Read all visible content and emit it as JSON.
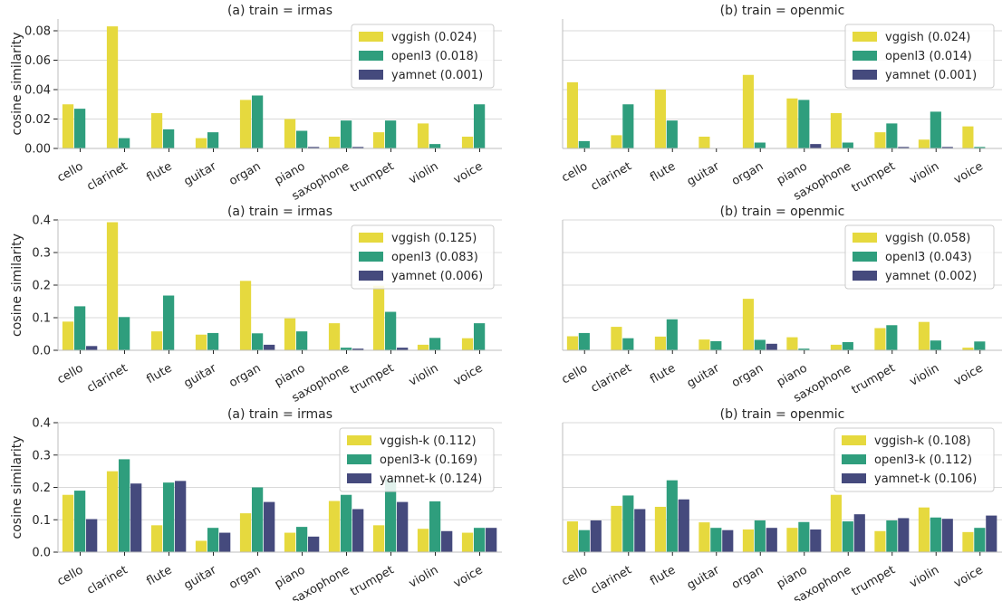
{
  "chart_data": [
    {
      "type": "bar",
      "title": "(a) train = irmas",
      "ylabel": "cosine similarity",
      "ylim": [
        0,
        0.088
      ],
      "yticks": [
        0.0,
        0.02,
        0.04,
        0.06,
        0.08
      ],
      "ytick_labels": [
        "0.00",
        "0.02",
        "0.04",
        "0.06",
        "0.08"
      ],
      "grid": "horizontal",
      "legend_position": "top-right",
      "categories": [
        "cello",
        "clarinet",
        "flute",
        "guitar",
        "organ",
        "piano",
        "saxophone",
        "trumpet",
        "violin",
        "voice"
      ],
      "series": [
        {
          "name": "vggish (0.024)",
          "color": "#e6d93e",
          "values": [
            0.03,
            0.083,
            0.024,
            0.007,
            0.033,
            0.02,
            0.008,
            0.011,
            0.017,
            0.008
          ]
        },
        {
          "name": "openl3 (0.018)",
          "color": "#2f9e7d",
          "values": [
            0.027,
            0.007,
            0.013,
            0.011,
            0.036,
            0.012,
            0.019,
            0.019,
            0.003,
            0.03
          ]
        },
        {
          "name": "yamnet (0.001)",
          "color": "#454a7d",
          "values": [
            0.0,
            0.0,
            0.0,
            0.0,
            0.0,
            0.001,
            0.001,
            0.0,
            0.0,
            0.0
          ]
        }
      ]
    },
    {
      "type": "bar",
      "title": "(b) train = openmic",
      "ylabel": "",
      "ylim": [
        0,
        0.088
      ],
      "yticks": [
        0.0,
        0.02,
        0.04,
        0.06,
        0.08
      ],
      "ytick_labels": [],
      "grid": "horizontal",
      "legend_position": "top-right",
      "categories": [
        "cello",
        "clarinet",
        "flute",
        "guitar",
        "organ",
        "piano",
        "saxophone",
        "trumpet",
        "violin",
        "voice"
      ],
      "series": [
        {
          "name": "vggish (0.024)",
          "color": "#e6d93e",
          "values": [
            0.045,
            0.009,
            0.04,
            0.008,
            0.05,
            0.034,
            0.024,
            0.011,
            0.006,
            0.015
          ]
        },
        {
          "name": "openl3 (0.014)",
          "color": "#2f9e7d",
          "values": [
            0.005,
            0.03,
            0.019,
            0.0,
            0.004,
            0.033,
            0.004,
            0.017,
            0.025,
            0.001
          ]
        },
        {
          "name": "yamnet (0.001)",
          "color": "#454a7d",
          "values": [
            0.0,
            0.0,
            0.0,
            0.0,
            0.0,
            0.003,
            0.0,
            0.001,
            0.001,
            0.0
          ]
        }
      ]
    },
    {
      "type": "bar",
      "title": "(a) train = irmas",
      "ylabel": "cosine similarity",
      "ylim": [
        0,
        0.4
      ],
      "yticks": [
        0.0,
        0.1,
        0.2,
        0.3,
        0.4
      ],
      "ytick_labels": [
        "0.0",
        "0.1",
        "0.2",
        "0.3",
        "0.4"
      ],
      "grid": "horizontal",
      "legend_position": "top-right",
      "categories": [
        "cello",
        "clarinet",
        "flute",
        "guitar",
        "organ",
        "piano",
        "saxophone",
        "trumpet",
        "violin",
        "voice"
      ],
      "series": [
        {
          "name": "vggish (0.125)",
          "color": "#e6d93e",
          "values": [
            0.088,
            0.393,
            0.058,
            0.048,
            0.213,
            0.098,
            0.083,
            0.198,
            0.017,
            0.037
          ]
        },
        {
          "name": "openl3 (0.083)",
          "color": "#2f9e7d",
          "values": [
            0.135,
            0.102,
            0.168,
            0.053,
            0.052,
            0.058,
            0.008,
            0.118,
            0.038,
            0.083
          ]
        },
        {
          "name": "yamnet (0.006)",
          "color": "#454a7d",
          "values": [
            0.013,
            0.0,
            0.0,
            0.0,
            0.017,
            0.0,
            0.005,
            0.008,
            0.0,
            0.0
          ]
        }
      ]
    },
    {
      "type": "bar",
      "title": "(b) train = openmic",
      "ylabel": "",
      "ylim": [
        0,
        0.4
      ],
      "yticks": [
        0.0,
        0.1,
        0.2,
        0.3,
        0.4
      ],
      "ytick_labels": [],
      "grid": "horizontal",
      "legend_position": "top-right",
      "categories": [
        "cello",
        "clarinet",
        "flute",
        "guitar",
        "organ",
        "piano",
        "saxophone",
        "trumpet",
        "violin",
        "voice"
      ],
      "series": [
        {
          "name": "vggish (0.058)",
          "color": "#e6d93e",
          "values": [
            0.043,
            0.072,
            0.042,
            0.033,
            0.158,
            0.04,
            0.017,
            0.068,
            0.087,
            0.008
          ]
        },
        {
          "name": "openl3 (0.043)",
          "color": "#2f9e7d",
          "values": [
            0.053,
            0.037,
            0.095,
            0.028,
            0.032,
            0.005,
            0.025,
            0.077,
            0.03,
            0.027
          ]
        },
        {
          "name": "yamnet (0.002)",
          "color": "#454a7d",
          "values": [
            0.0,
            0.0,
            0.0,
            0.0,
            0.02,
            0.0,
            0.0,
            0.0,
            0.0,
            0.0
          ]
        }
      ]
    },
    {
      "type": "bar",
      "title": "(a) train = irmas",
      "ylabel": "cosine similarity",
      "ylim": [
        0,
        0.4
      ],
      "yticks": [
        0.0,
        0.1,
        0.2,
        0.3,
        0.4
      ],
      "ytick_labels": [
        "0.0",
        "0.1",
        "0.2",
        "0.3",
        "0.4"
      ],
      "grid": "horizontal",
      "legend_position": "top-right",
      "categories": [
        "cello",
        "clarinet",
        "flute",
        "guitar",
        "organ",
        "piano",
        "saxophone",
        "trumpet",
        "violin",
        "voice"
      ],
      "series": [
        {
          "name": "vggish-k (0.112)",
          "color": "#e6d93e",
          "values": [
            0.177,
            0.25,
            0.083,
            0.035,
            0.12,
            0.06,
            0.158,
            0.083,
            0.072,
            0.06
          ]
        },
        {
          "name": "openl3-k (0.169)",
          "color": "#2f9e7d",
          "values": [
            0.19,
            0.287,
            0.215,
            0.075,
            0.2,
            0.078,
            0.177,
            0.225,
            0.157,
            0.075
          ]
        },
        {
          "name": "yamnet-k (0.124)",
          "color": "#454a7d",
          "values": [
            0.102,
            0.212,
            0.22,
            0.06,
            0.155,
            0.048,
            0.133,
            0.155,
            0.065,
            0.075
          ]
        }
      ]
    },
    {
      "type": "bar",
      "title": "(b) train = openmic",
      "ylabel": "",
      "ylim": [
        0,
        0.4
      ],
      "yticks": [
        0.0,
        0.1,
        0.2,
        0.3,
        0.4
      ],
      "ytick_labels": [],
      "grid": "horizontal",
      "legend_position": "top-right",
      "categories": [
        "cello",
        "clarinet",
        "flute",
        "guitar",
        "organ",
        "piano",
        "saxophone",
        "trumpet",
        "violin",
        "voice"
      ],
      "series": [
        {
          "name": "vggish-k (0.108)",
          "color": "#e6d93e",
          "values": [
            0.095,
            0.143,
            0.14,
            0.092,
            0.07,
            0.075,
            0.177,
            0.065,
            0.138,
            0.062
          ]
        },
        {
          "name": "openl3-k (0.112)",
          "color": "#2f9e7d",
          "values": [
            0.068,
            0.175,
            0.222,
            0.075,
            0.098,
            0.093,
            0.095,
            0.098,
            0.107,
            0.075
          ]
        },
        {
          "name": "yamnet-k (0.106)",
          "color": "#454a7d",
          "values": [
            0.098,
            0.133,
            0.163,
            0.068,
            0.075,
            0.07,
            0.117,
            0.105,
            0.103,
            0.113
          ]
        }
      ]
    }
  ]
}
